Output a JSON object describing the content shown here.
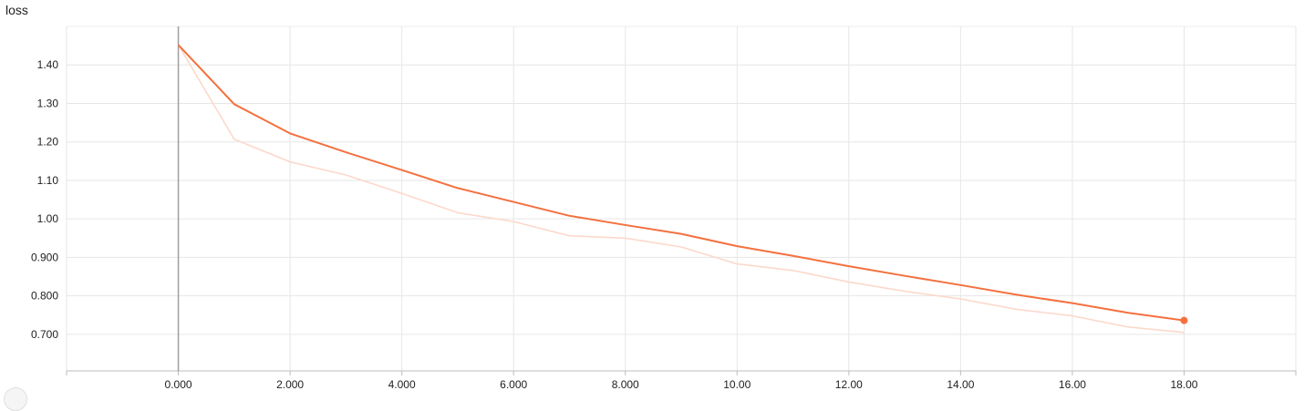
{
  "chart_data": {
    "type": "line",
    "title": "loss",
    "xlim": [
      -2,
      20
    ],
    "ylim": [
      0.605,
      1.5
    ],
    "x_ticks": [
      0,
      2,
      4,
      6,
      8,
      10,
      12,
      14,
      16,
      18
    ],
    "x_tick_labels": [
      "0.000",
      "2.000",
      "4.000",
      "6.000",
      "8.000",
      "10.00",
      "12.00",
      "14.00",
      "16.00",
      "18.00"
    ],
    "y_ticks": [
      0.7,
      0.8,
      0.9,
      1.0,
      1.1,
      1.2,
      1.3,
      1.4
    ],
    "y_tick_labels": [
      "0.700",
      "0.800",
      "0.900",
      "1.00",
      "1.10",
      "1.20",
      "1.30",
      "1.40"
    ],
    "grid": true,
    "series": [
      {
        "role": "smoothed",
        "color": "#f4703f",
        "x": [
          0,
          1,
          2,
          3,
          4,
          5,
          6,
          7,
          8,
          9,
          10,
          11,
          12,
          13,
          14,
          15,
          16,
          17,
          18
        ],
        "y": [
          1.452,
          1.298,
          1.222,
          1.173,
          1.127,
          1.08,
          1.044,
          1.008,
          0.984,
          0.961,
          0.929,
          0.904,
          0.877,
          0.852,
          0.828,
          0.803,
          0.781,
          0.756,
          0.736
        ]
      },
      {
        "role": "raw",
        "color": "#fcd8cb",
        "x": [
          0,
          1,
          2,
          3,
          4,
          5,
          6,
          7,
          8,
          9,
          10,
          11,
          12,
          13,
          14,
          15,
          16,
          17,
          18
        ],
        "y": [
          1.452,
          1.207,
          1.148,
          1.114,
          1.066,
          1.016,
          0.993,
          0.956,
          0.95,
          0.927,
          0.883,
          0.866,
          0.836,
          0.812,
          0.792,
          0.765,
          0.748,
          0.719,
          0.705
        ]
      }
    ]
  }
}
